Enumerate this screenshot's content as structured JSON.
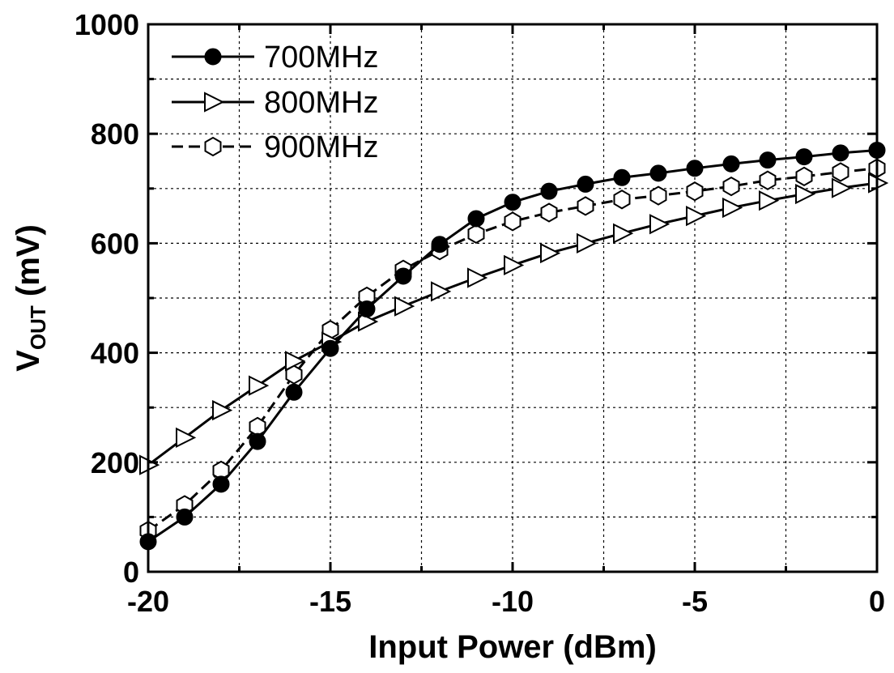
{
  "chart_data": {
    "type": "line",
    "title": "",
    "xlabel": "Input Power (dBm)",
    "ylabel": {
      "main": "V",
      "subscript": "OUT",
      "suffix": " (mV)"
    },
    "xlim": [
      -20,
      0
    ],
    "ylim": [
      0,
      1000
    ],
    "x_ticks": [
      -20,
      -15,
      -10,
      -5,
      0
    ],
    "y_ticks": [
      0,
      200,
      400,
      600,
      800,
      1000
    ],
    "x_ticks_labels": [
      "-20",
      "-15",
      "-10",
      "-5",
      "0"
    ],
    "y_ticks_labels": [
      "0",
      "200",
      "400",
      "600",
      "800",
      "1000"
    ],
    "grid": true,
    "legend_position": "top-left",
    "x": [
      -20,
      -19,
      -18,
      -17,
      -16,
      -15,
      -14,
      -13,
      -12,
      -11,
      -10,
      -9,
      -8,
      -7,
      -6,
      -5,
      -4,
      -3,
      -2,
      -1,
      0
    ],
    "series": [
      {
        "name": "700MHz",
        "marker": "circle-filled",
        "line": "solid",
        "values": [
          55,
          100,
          160,
          238,
          328,
          408,
          480,
          540,
          598,
          645,
          675,
          695,
          708,
          720,
          728,
          737,
          745,
          752,
          758,
          765,
          770
        ]
      },
      {
        "name": "800MHz",
        "marker": "triangle-right-open",
        "line": "solid",
        "values": [
          195,
          245,
          295,
          340,
          385,
          420,
          457,
          485,
          512,
          537,
          560,
          582,
          600,
          618,
          635,
          650,
          665,
          678,
          690,
          701,
          710
        ]
      },
      {
        "name": "900MHz",
        "marker": "hexagon-open",
        "line": "dashed",
        "values": [
          75,
          122,
          185,
          265,
          360,
          442,
          503,
          552,
          587,
          617,
          640,
          656,
          668,
          680,
          687,
          695,
          704,
          715,
          722,
          730,
          737
        ]
      }
    ]
  }
}
